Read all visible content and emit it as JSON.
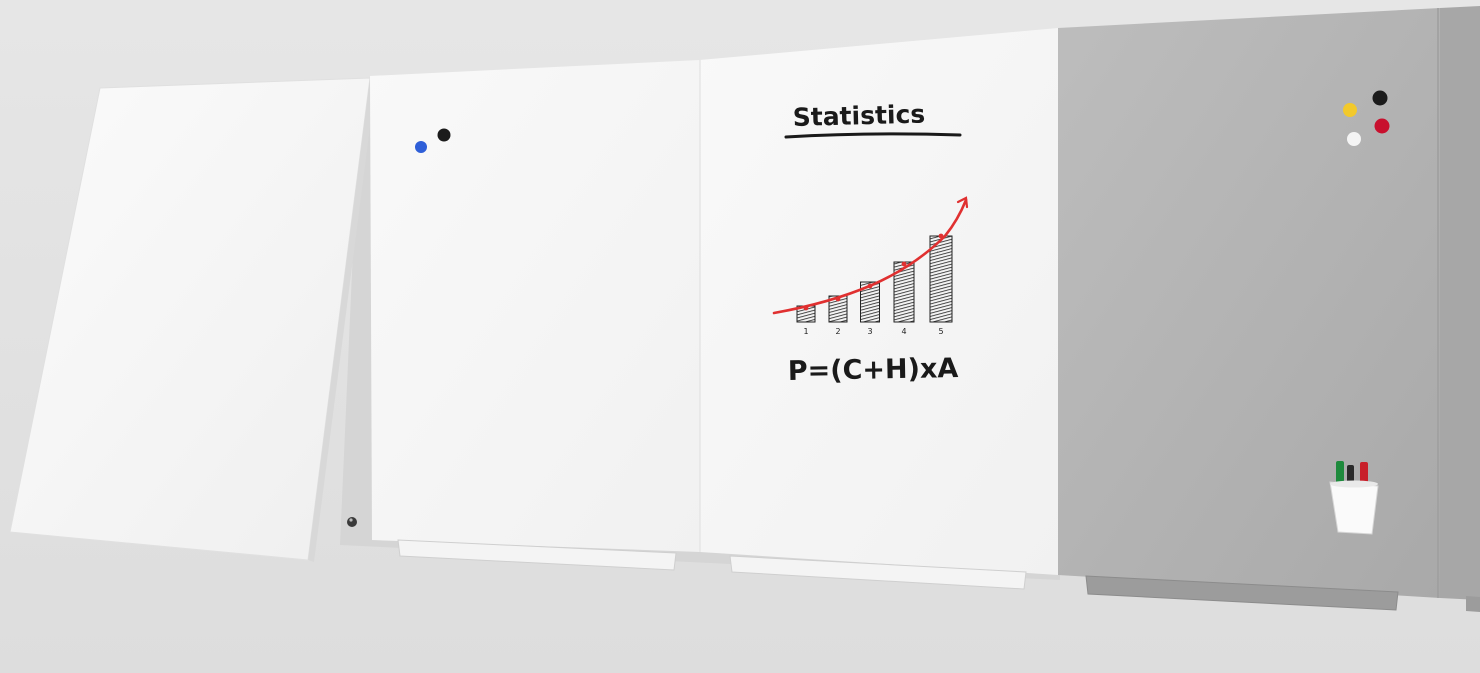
{
  "whiteboard": {
    "title": "Statistics",
    "formula": "P=(C+H)xA",
    "chart_ticks": [
      "1",
      "2",
      "3",
      "4",
      "5"
    ]
  },
  "colors": {
    "background": "#e3e3e3",
    "whiteboard": "#f7f7f7",
    "magnetic_panel": "#b4b4b4",
    "marker_line": "#e03030",
    "magnet_blue": "#2f5fd8",
    "magnet_black": "#1b1b1b",
    "magnet_yellow": "#f2c92c",
    "magnet_white": "#f4f4f4",
    "magnet_red": "#c8102e",
    "marker_green": "#1e8a3c",
    "marker_red": "#c8202a"
  }
}
